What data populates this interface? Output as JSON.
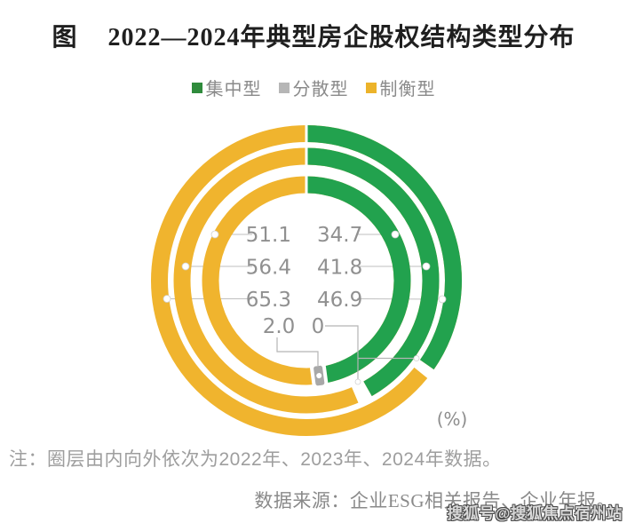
{
  "title": {
    "prefix": "图",
    "text": "2022—2024年典型房企股权结构类型分布"
  },
  "legend": [
    {
      "label": "集中型",
      "color": "#2f8b3c"
    },
    {
      "label": "分散型",
      "color": "#b6b6b6"
    },
    {
      "label": "制衡型",
      "color": "#ecb32a"
    }
  ],
  "colors": {
    "green": "#22a24e",
    "yellow": "#f0b42e",
    "gray": "#a8a8a8",
    "leader": "#bfbfbf"
  },
  "chart": {
    "unit_label": "(%)",
    "left_labels": [
      "51.1",
      "56.4",
      "65.3"
    ],
    "right_labels": [
      "34.7",
      "41.8",
      "46.9"
    ],
    "bottom_labels": [
      "2.0",
      "0"
    ]
  },
  "chart_data": {
    "type": "donut",
    "title": "2022—2024年典型房企股权结构类型分布",
    "unit": "%",
    "legend_position": "top",
    "categories": [
      "集中型",
      "分散型",
      "制衡型"
    ],
    "rings_inner_to_outer": [
      "2022年",
      "2023年",
      "2024年"
    ],
    "series": [
      {
        "name": "2022年",
        "ring": "inner",
        "values": {
          "集中型": 46.9,
          "分散型": 2.0,
          "制衡型": 51.1
        }
      },
      {
        "name": "2023年",
        "ring": "middle",
        "values": {
          "集中型": 41.8,
          "分散型": 0,
          "制衡型": 56.4
        }
      },
      {
        "name": "2024年",
        "ring": "outer",
        "values": {
          "集中型": 34.7,
          "分散型": 0,
          "制衡型": 65.3
        }
      }
    ],
    "note": "圈层由内向外依次为2022年、2023年、2024年数据。"
  },
  "note": "注：圈层由内向外依次为2022年、2023年、2024年数据。",
  "source": "数据来源：企业ESG相关报告、企业年报。",
  "watermark": "搜狐号@搜狐焦点宿州站"
}
